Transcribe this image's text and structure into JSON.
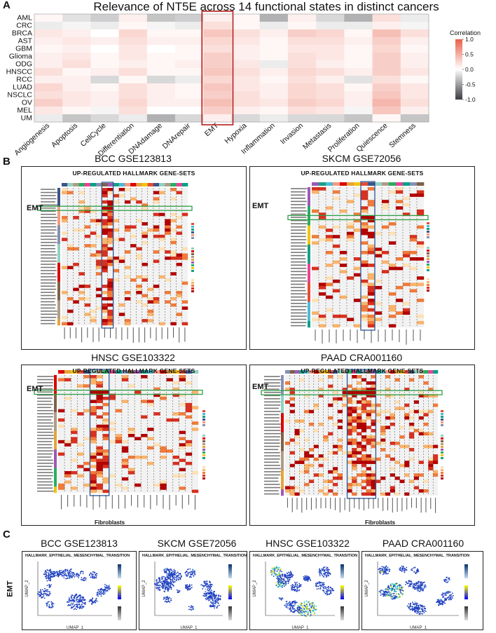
{
  "panel_a": {
    "letter": "A",
    "title": "Relevance of NT5E across 14 functional states in distinct cancers",
    "legend_title": "Correlation",
    "highlight": "EMT"
  },
  "panel_b": {
    "letter": "B",
    "heatmap_title": "UP-REGULATED HALLMARK GENE-SETS",
    "emt_label": "EMT",
    "fibroblasts_label": "Fibroblasts",
    "subplots": [
      {
        "title": "BCC GSE123813"
      },
      {
        "title": "SKCM GSE72056"
      },
      {
        "title": "HNSC GSE103322"
      },
      {
        "title": "PAAD CRA001160"
      }
    ]
  },
  "panel_c": {
    "letter": "C",
    "emt_label": "EMT",
    "plot_heading": "HALLMARK_EPITHELIAL_MESENCHYMAL_TRANSITION",
    "x_label": "UMAP_1",
    "y_label": "UMAP_2",
    "subplots": [
      {
        "title": "BCC GSE123813"
      },
      {
        "title": "SKCM GSE72056"
      },
      {
        "title": "HNSC GSE103322"
      },
      {
        "title": "PAAD CRA001160"
      }
    ]
  },
  "chart_data": {
    "type": "heatmap",
    "title": "Relevance of NT5E across 14 functional states in distinct cancers",
    "rows": [
      "AML",
      "CRC",
      "BRCA",
      "AST",
      "GBM",
      "Glioma",
      "ODG",
      "HNSCC",
      "RCC",
      "LUAD",
      "NSCLC",
      "OV",
      "MEL",
      "UM"
    ],
    "columns": [
      "Angiogenesis",
      "Apoptosis",
      "CellCycle",
      "Differentiation",
      "DNAdamage",
      "DNArepair",
      "EMT",
      "Hypoxia",
      "Inflammation",
      "Invasion",
      "Metastasis",
      "Proliferation",
      "Quiescence",
      "Stemness"
    ],
    "legend": {
      "title": "Correlation",
      "ticks": [
        1.0,
        0.5,
        0.0,
        -0.5,
        -1.0
      ],
      "range": [
        -1,
        1
      ]
    },
    "values": [
      [
        0.05,
        -0.15,
        -0.25,
        0.1,
        -0.3,
        -0.25,
        0.1,
        0.05,
        -0.4,
        0.1,
        -0.2,
        -0.4,
        0.2,
        -0.1
      ],
      [
        -0.1,
        -0.05,
        -0.1,
        0.05,
        -0.05,
        -0.1,
        0.2,
        0.05,
        -0.1,
        0.05,
        -0.1,
        -0.1,
        0.1,
        -0.05
      ],
      [
        0.15,
        0.1,
        0.0,
        0.25,
        0.05,
        0.05,
        0.35,
        0.2,
        0.1,
        0.3,
        0.25,
        0.05,
        0.4,
        0.2
      ],
      [
        0.1,
        0.15,
        0.1,
        0.2,
        0.1,
        0.1,
        0.25,
        0.15,
        0.05,
        0.2,
        0.2,
        0.1,
        0.3,
        0.1
      ],
      [
        0.05,
        0.1,
        0.0,
        0.15,
        0.0,
        0.05,
        0.2,
        0.1,
        0.05,
        0.15,
        0.15,
        0.05,
        0.25,
        0.05
      ],
      [
        0.1,
        0.15,
        0.05,
        0.15,
        0.05,
        0.05,
        0.3,
        0.1,
        0.05,
        0.2,
        0.15,
        0.05,
        0.3,
        0.1
      ],
      [
        0.1,
        0.2,
        0.05,
        0.1,
        0.05,
        0.1,
        0.3,
        0.15,
        -0.1,
        0.2,
        0.1,
        0.05,
        0.3,
        0.1
      ],
      [
        0.2,
        0.05,
        0.1,
        0.2,
        0.05,
        0.05,
        0.35,
        0.2,
        0.1,
        0.25,
        0.2,
        0.1,
        0.3,
        0.15
      ],
      [
        0.1,
        0.1,
        -0.2,
        0.05,
        -0.2,
        -0.1,
        0.25,
        0.15,
        0.05,
        0.2,
        0.1,
        -0.15,
        0.2,
        0.05
      ],
      [
        0.25,
        0.1,
        0.05,
        0.2,
        0.1,
        0.05,
        0.35,
        0.15,
        0.1,
        0.25,
        0.2,
        0.05,
        0.3,
        0.15
      ],
      [
        0.2,
        0.15,
        0.1,
        0.2,
        0.1,
        0.05,
        0.3,
        0.2,
        0.1,
        0.25,
        0.2,
        0.1,
        0.35,
        0.15
      ],
      [
        0.3,
        0.15,
        0.1,
        0.25,
        0.1,
        0.1,
        0.4,
        0.2,
        0.15,
        0.3,
        0.25,
        0.1,
        0.45,
        0.2
      ],
      [
        0.15,
        0.05,
        -0.05,
        0.2,
        0.0,
        0.0,
        0.3,
        0.1,
        0.05,
        0.2,
        0.15,
        -0.05,
        0.35,
        0.1
      ],
      [
        -0.1,
        -0.3,
        -0.2,
        -0.1,
        -0.4,
        -0.2,
        0.1,
        -0.2,
        -0.1,
        -0.2,
        -0.2,
        -0.3,
        0.05,
        -0.3
      ]
    ]
  }
}
